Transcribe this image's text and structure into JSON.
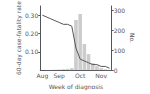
{
  "chart_data": {
    "type": "combo",
    "xlabel": "Week of diagnosis",
    "ylabel": "60-day case-fatality rate",
    "y2label": "No.",
    "categories": [
      "Aug",
      null,
      null,
      null,
      "Sep",
      null,
      null,
      null,
      null,
      "Oct",
      null,
      null,
      null,
      null,
      "Nov",
      null,
      null
    ],
    "series": [
      {
        "type": "bar",
        "axis": "y2",
        "color": "#cccccc",
        "values": [
          0,
          1,
          1,
          2,
          3,
          4,
          6,
          10,
          250,
          280,
          130,
          80,
          35,
          20,
          10,
          4,
          1
        ]
      },
      {
        "type": "line",
        "color": "#555555",
        "values": [
          0.3,
          0.29,
          0.28,
          0.27,
          0.26,
          0.25,
          0.25,
          0.24,
          0.12,
          0.06,
          0.05,
          0.04,
          0.03,
          0.03,
          0.02,
          0.02,
          0.01
        ]
      }
    ],
    "ylim": [
      0,
      0.35
    ],
    "yticks": [
      {
        "value": 0.1,
        "label": "0.10"
      },
      {
        "value": 0.2,
        "label": "0.20"
      },
      {
        "value": 0.3,
        "label": "0.30"
      }
    ],
    "y2lim": [
      0,
      320
    ],
    "y2ticks": [
      0,
      100,
      200,
      300
    ],
    "grid": false
  }
}
